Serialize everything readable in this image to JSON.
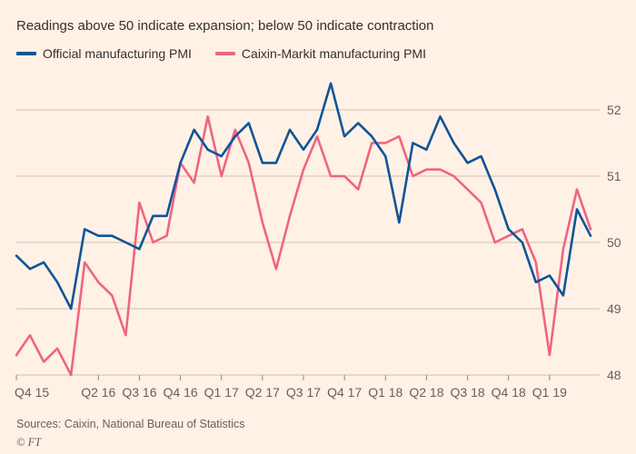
{
  "subtitle": "Readings above 50 indicate expansion; below 50 indicate contraction",
  "source": "Sources: Caixin, National Bureau of Statistics",
  "ft_mark": "© FT",
  "colors": {
    "background": "#FFF1E5",
    "official_line": "#0f5499",
    "caixin_line": "#ee6583",
    "grid": "#ccc1b4",
    "text": "#33302e",
    "muted_text": "#66605c"
  },
  "chart_data": {
    "type": "line",
    "title": "",
    "subtitle": "Readings above 50 indicate expansion; below 50 indicate contraction",
    "x_unit": "month",
    "x_start": "Oct 2015",
    "x_end": "Apr 2019",
    "ylim": [
      48,
      52.6
    ],
    "yticks": [
      48,
      49,
      50,
      51,
      52
    ],
    "grid": "horizontal",
    "legend_position": "top-left",
    "yaxis_side": "right",
    "x_tick_labels": [
      "Q4 15",
      "Q2 16",
      "Q3 16",
      "Q4 16",
      "Q1 17",
      "Q2 17",
      "Q3 17",
      "Q4 17",
      "Q1 18",
      "Q2 18",
      "Q3 18",
      "Q4 18",
      "Q1 19"
    ],
    "x_tick_indices": [
      0,
      6,
      9,
      12,
      15,
      18,
      21,
      24,
      27,
      30,
      33,
      36,
      39
    ],
    "series": [
      {
        "name": "Official manufacturing PMI",
        "color": "#0f5499",
        "values": [
          49.8,
          49.6,
          49.7,
          49.4,
          49.0,
          50.2,
          50.1,
          50.1,
          50.0,
          49.9,
          50.4,
          50.4,
          51.2,
          51.7,
          51.4,
          51.3,
          51.6,
          51.8,
          51.2,
          51.2,
          51.7,
          51.4,
          51.7,
          52.4,
          51.6,
          51.8,
          51.6,
          51.3,
          50.3,
          51.5,
          51.4,
          51.9,
          51.5,
          51.2,
          51.3,
          50.8,
          50.2,
          50.0,
          49.4,
          49.5,
          49.2,
          50.5,
          50.1
        ]
      },
      {
        "name": "Caixin-Markit manufacturing PMI",
        "color": "#ee6583",
        "values": [
          48.3,
          48.6,
          48.2,
          48.4,
          48.0,
          49.7,
          49.4,
          49.2,
          48.6,
          50.6,
          50.0,
          50.1,
          51.2,
          50.9,
          51.9,
          51.0,
          51.7,
          51.2,
          50.3,
          49.6,
          50.4,
          51.1,
          51.6,
          51.0,
          51.0,
          50.8,
          51.5,
          51.5,
          51.6,
          51.0,
          51.1,
          51.1,
          51.0,
          50.8,
          50.6,
          50.0,
          50.1,
          50.2,
          49.7,
          48.3,
          49.9,
          50.8,
          50.2
        ]
      }
    ]
  }
}
